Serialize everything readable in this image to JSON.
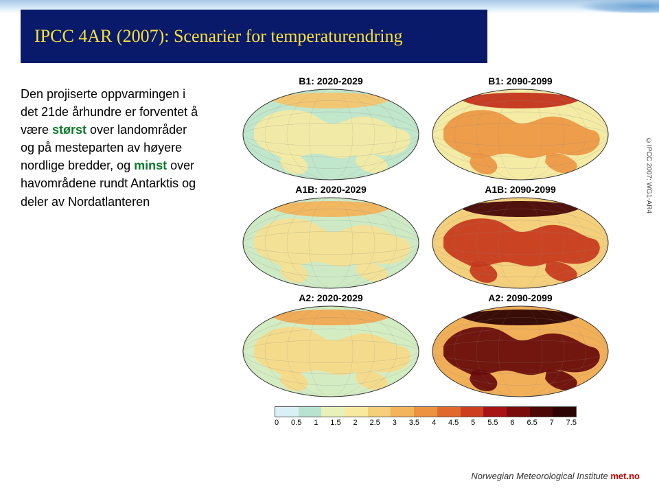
{
  "title": "IPCC 4AR (2007): Scenarier for temperaturendring",
  "paragraph": {
    "lead": "Den projiserte oppvarmingen i det 21de århundre er forventet å være ",
    "emph1": "størst",
    "mid1": " over landområder og på mesteparten av høyere nordlige bredder, og ",
    "emph2": "minst",
    "tail": " over havområdene rundt Antarktis og deler av Nordatlanteren"
  },
  "emph_color": "#0a7a2a",
  "maps": [
    {
      "label": "B1: 2020-2029",
      "intensity": 0.18
    },
    {
      "label": "B1: 2090-2099",
      "intensity": 0.42
    },
    {
      "label": "A1B: 2020-2029",
      "intensity": 0.22
    },
    {
      "label": "A1B: 2090-2099",
      "intensity": 0.6
    },
    {
      "label": "A2: 2020-2029",
      "intensity": 0.24
    },
    {
      "label": "A2: 2090-2099",
      "intensity": 0.78
    }
  ],
  "colorbar": {
    "stops": [
      "#d9f0f7",
      "#b7e3d0",
      "#e8f2b8",
      "#f7e9a0",
      "#f5cf7a",
      "#f2b45c",
      "#ec9240",
      "#df6a2c",
      "#cc3e1e",
      "#a81414",
      "#7a0c0c",
      "#4c0707",
      "#2d0404"
    ],
    "ticks": [
      "0",
      "0.5",
      "1",
      "1.5",
      "2",
      "2.5",
      "3",
      "3.5",
      "4",
      "4.5",
      "5",
      "5.5",
      "6",
      "6.5",
      "7",
      "7.5"
    ]
  },
  "credit": "©IPCC 2007: WG1-AR4",
  "footer_inst": "Norwegian Meteorological Institute",
  "footer_site": "met.no"
}
